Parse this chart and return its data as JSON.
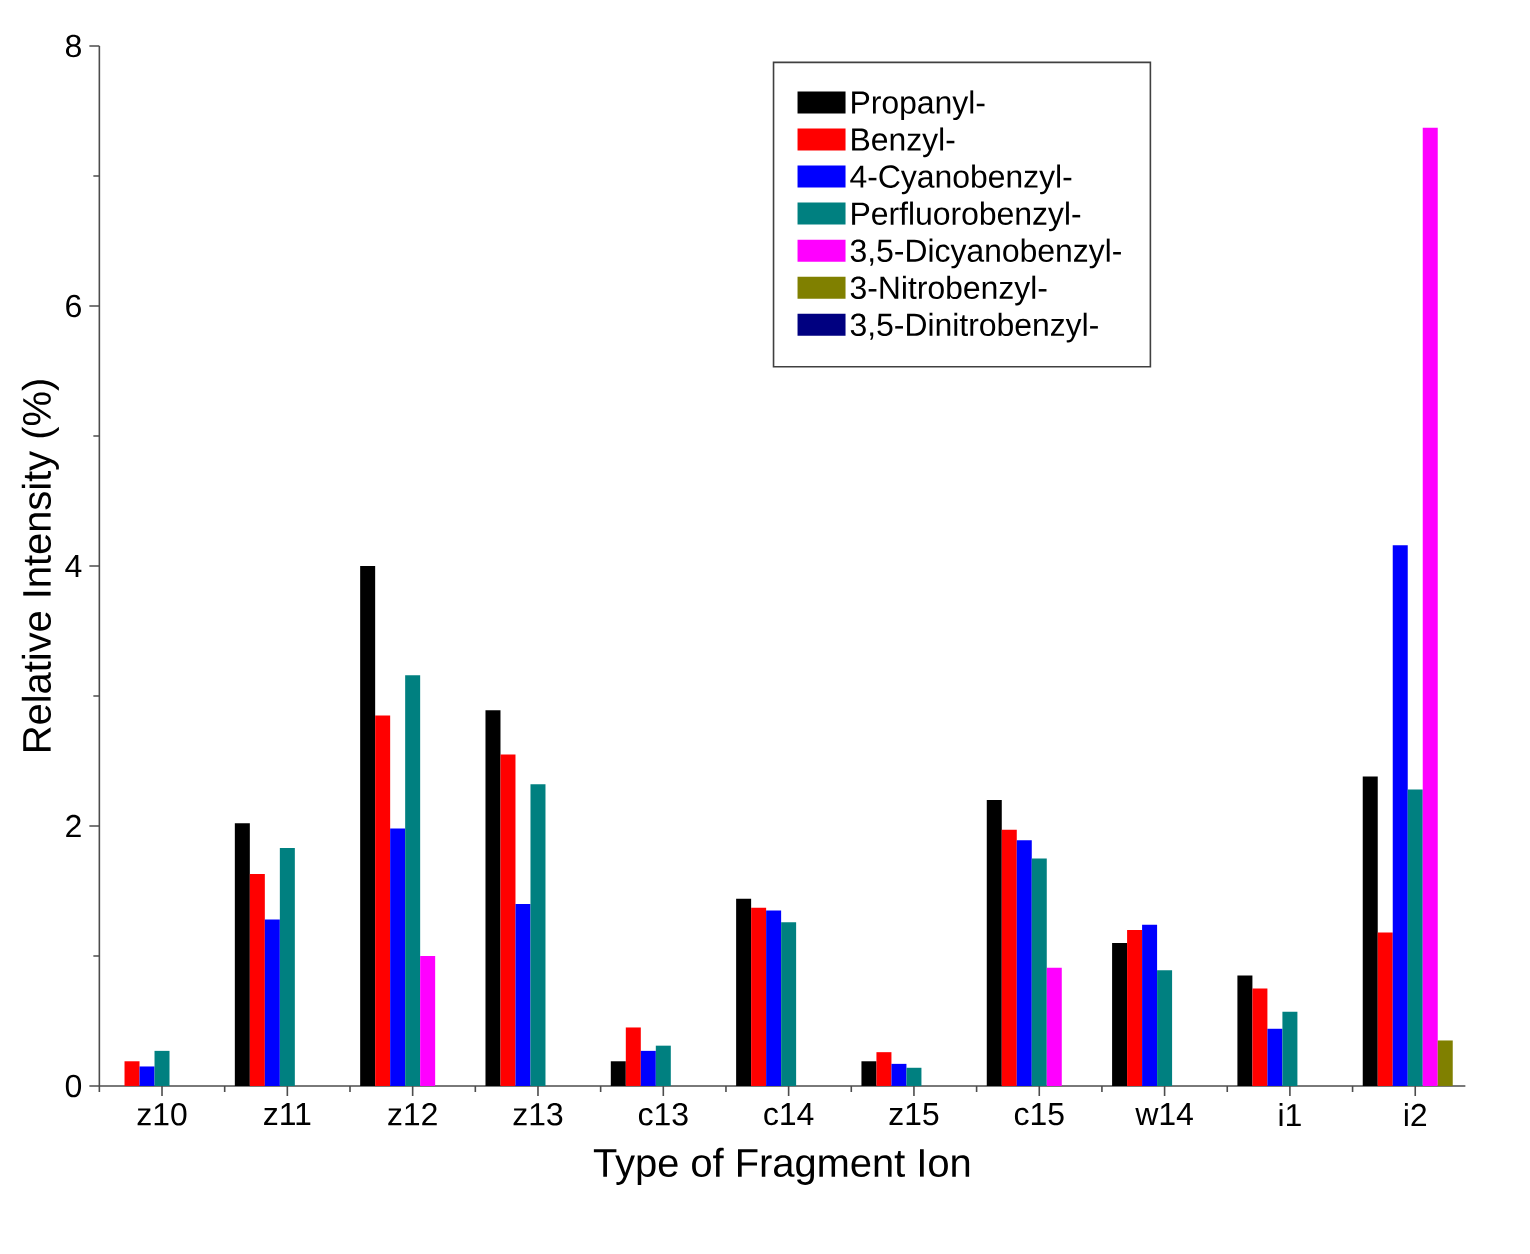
{
  "chart_data": {
    "type": "bar",
    "xlabel": "Type of Fragment Ion",
    "ylabel": "Relative Intensity (%)",
    "categories": [
      "z10",
      "z11",
      "z12",
      "z13",
      "c13",
      "c14",
      "z15",
      "c15",
      "w14",
      "i1",
      "i2"
    ],
    "series": [
      {
        "name": "Propanyl-",
        "color": "#000000",
        "values": [
          null,
          2.02,
          4.0,
          2.89,
          0.19,
          1.44,
          0.19,
          2.2,
          1.1,
          0.85,
          2.38
        ]
      },
      {
        "name": "Benzyl-",
        "color": "#ff0000",
        "values": [
          0.19,
          1.63,
          2.85,
          2.55,
          0.45,
          1.37,
          0.26,
          1.97,
          1.2,
          0.75,
          1.18
        ]
      },
      {
        "name": "4-Cyanobenzyl-",
        "color": "#0000ff",
        "values": [
          0.15,
          1.28,
          1.98,
          1.4,
          0.27,
          1.35,
          0.17,
          1.89,
          1.24,
          0.44,
          4.16
        ]
      },
      {
        "name": "Perfluorobenzyl-",
        "color": "#008080",
        "values": [
          0.27,
          1.83,
          3.16,
          2.32,
          0.31,
          1.26,
          0.14,
          1.75,
          0.89,
          0.57,
          2.28
        ]
      },
      {
        "name": "3,5-Dicyanobenzyl-",
        "color": "#ff00ff",
        "values": [
          null,
          null,
          1.0,
          null,
          null,
          null,
          null,
          0.91,
          null,
          null,
          7.37
        ]
      },
      {
        "name": "3-Nitrobenzyl-",
        "color": "#808000",
        "values": [
          null,
          null,
          null,
          null,
          null,
          null,
          null,
          null,
          null,
          null,
          0.35
        ]
      },
      {
        "name": "3,5-Dinitrobenzyl-",
        "color": "#000080",
        "values": [
          null,
          null,
          null,
          null,
          null,
          null,
          null,
          null,
          null,
          null,
          null
        ]
      }
    ],
    "ylim": [
      0,
      8
    ],
    "yticks": [
      0,
      2,
      4,
      6,
      8
    ],
    "legend": "top right"
  }
}
